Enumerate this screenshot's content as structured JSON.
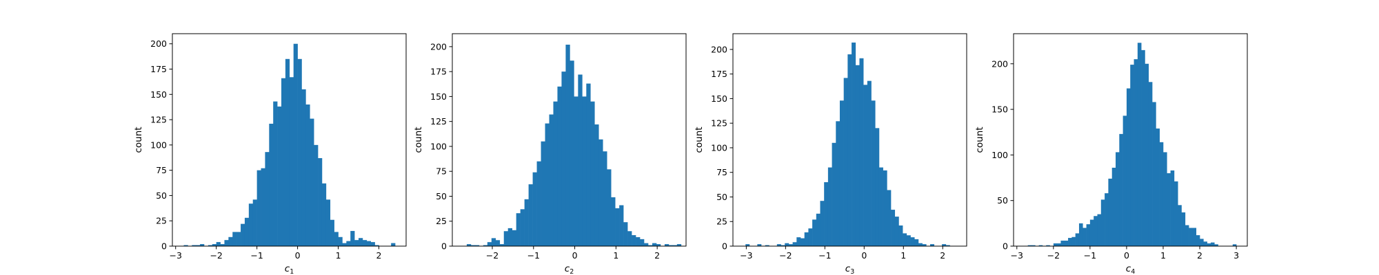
{
  "chart_data": [
    {
      "type": "bar",
      "xlabel_base": "c",
      "xlabel_sub": "1",
      "ylabel": "count",
      "grid": false,
      "color": "#1f77b4",
      "xlim": [
        -3.08,
        2.67
      ],
      "ylim": [
        0,
        210
      ],
      "xticks": [
        -3,
        -2,
        -1,
        0,
        1,
        2
      ],
      "yticks": [
        0,
        25,
        50,
        75,
        100,
        125,
        150,
        175,
        200
      ],
      "bin_start": -2.8,
      "bin_width": 0.1,
      "bins": 52,
      "values": [
        1,
        0,
        1,
        1,
        2,
        0,
        1,
        2,
        4,
        2,
        6,
        9,
        14,
        14,
        22,
        28,
        42,
        46,
        75,
        77,
        93,
        121,
        143,
        138,
        166,
        185,
        167,
        200,
        185,
        155,
        140,
        126,
        100,
        87,
        62,
        46,
        26,
        14,
        9,
        3,
        5,
        15,
        6,
        8,
        6,
        5,
        4,
        1,
        0,
        0,
        0,
        3
      ]
    },
    {
      "type": "bar",
      "xlabel_base": "c",
      "xlabel_sub": "2",
      "ylabel": "count",
      "grid": false,
      "color": "#1f77b4",
      "xlim": [
        -2.97,
        2.7
      ],
      "ylim": [
        0,
        213
      ],
      "xticks": [
        -2,
        -1,
        0,
        1,
        2
      ],
      "yticks": [
        0,
        25,
        50,
        75,
        100,
        125,
        150,
        175,
        200
      ],
      "bin_start": -2.62,
      "bin_width": 0.1,
      "bins": 52,
      "values": [
        2,
        1,
        1,
        0,
        1,
        4,
        8,
        6,
        2,
        15,
        18,
        16,
        33,
        37,
        47,
        62,
        74,
        85,
        105,
        123,
        132,
        145,
        160,
        175,
        202,
        186,
        150,
        172,
        150,
        163,
        145,
        122,
        107,
        95,
        77,
        49,
        38,
        41,
        24,
        15,
        11,
        9,
        7,
        3,
        1,
        3,
        2,
        0,
        2,
        1,
        1,
        2
      ]
    },
    {
      "type": "bar",
      "xlabel_base": "c",
      "xlabel_sub": "3",
      "ylabel": "count",
      "grid": false,
      "color": "#1f77b4",
      "xlim": [
        -3.34,
        2.61
      ],
      "ylim": [
        0,
        216
      ],
      "xticks": [
        -3,
        -2,
        -1,
        0,
        1,
        2
      ],
      "yticks": [
        0,
        25,
        50,
        75,
        100,
        125,
        150,
        175,
        200
      ],
      "bin_start": -3.02,
      "bin_width": 0.1,
      "bins": 52,
      "values": [
        2,
        0,
        0,
        2,
        0,
        1,
        0,
        0,
        2,
        1,
        3,
        2,
        4,
        9,
        8,
        14,
        18,
        27,
        33,
        46,
        65,
        80,
        105,
        127,
        148,
        171,
        195,
        207,
        184,
        191,
        164,
        168,
        148,
        120,
        80,
        77,
        57,
        37,
        30,
        21,
        13,
        11,
        9,
        7,
        3,
        2,
        0,
        2,
        0,
        0,
        2,
        1
      ]
    },
    {
      "type": "bar",
      "xlabel_base": "c",
      "xlabel_sub": "4",
      "ylabel": "count",
      "grid": false,
      "color": "#1f77b4",
      "xlim": [
        -3.09,
        3.3
      ],
      "ylim": [
        0,
        233
      ],
      "xticks": [
        -3,
        -2,
        -1,
        0,
        1,
        2,
        3
      ],
      "yticks": [
        0,
        50,
        100,
        150,
        200
      ],
      "bin_start": -2.9,
      "bin_width": 0.1,
      "bins": 59,
      "values": [
        0,
        0,
        1,
        1,
        0,
        1,
        0,
        1,
        0,
        3,
        3,
        6,
        6,
        9,
        10,
        14,
        25,
        20,
        24,
        29,
        33,
        35,
        51,
        58,
        74,
        86,
        103,
        123,
        143,
        173,
        199,
        205,
        223,
        215,
        200,
        180,
        158,
        129,
        114,
        103,
        80,
        83,
        71,
        45,
        37,
        23,
        20,
        20,
        12,
        8,
        5,
        3,
        4,
        2,
        0,
        0,
        0,
        0,
        2
      ]
    }
  ]
}
